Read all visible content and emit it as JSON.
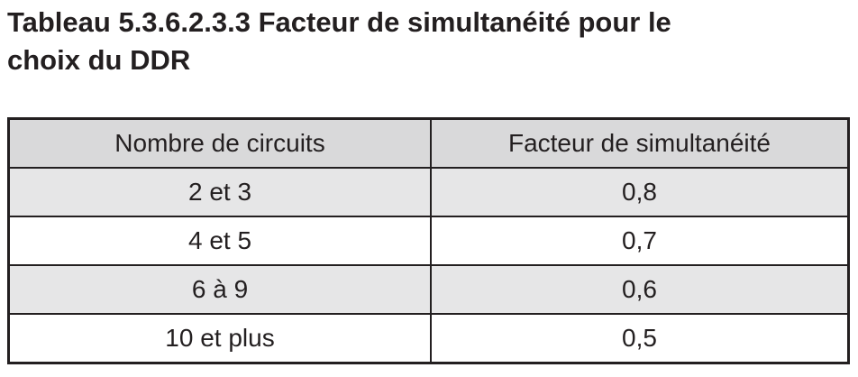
{
  "title": {
    "line1": "Tableau 5.3.6.2.3.3  Facteur de simultanéité pour le",
    "line2": "choix du DDR"
  },
  "table": {
    "headers": [
      "Nombre de circuits",
      "Facteur de simultanéité"
    ],
    "rows": [
      [
        "2 et 3",
        "0,8"
      ],
      [
        "4 et 5",
        "0,7"
      ],
      [
        "6 à 9",
        "0,6"
      ],
      [
        "10 et plus",
        "0,5"
      ]
    ]
  },
  "colors": {
    "text": "#231f20",
    "header_bg": "#d9d9da",
    "shaded_row_bg": "#e6e6e7",
    "plain_row_bg": "#ffffff"
  }
}
